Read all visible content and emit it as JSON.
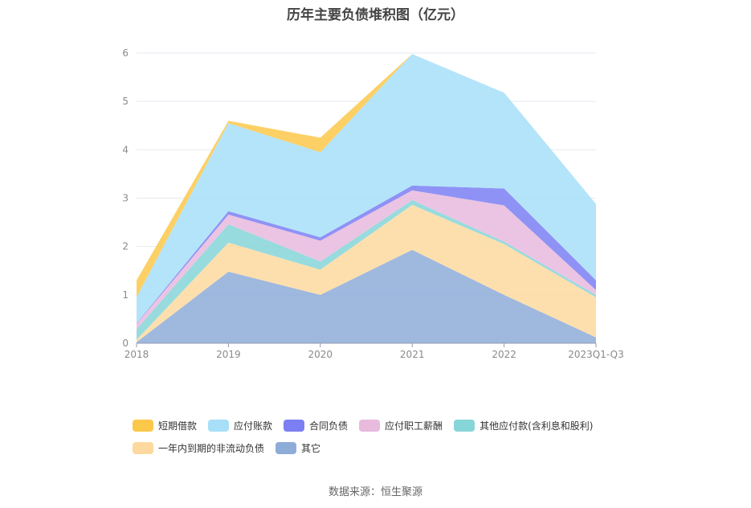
{
  "chart_data": {
    "type": "area",
    "title": "历年主要负债堆积图（亿元）",
    "categories": [
      "2018",
      "2019",
      "2020",
      "2021",
      "2022",
      "2023Q1-Q3"
    ],
    "ylim": [
      0,
      6
    ],
    "yticks": [
      0,
      1,
      2,
      3,
      4,
      5,
      6
    ],
    "stacked": true,
    "grid": true,
    "legend_position": "bottom",
    "series": [
      {
        "name": "其它",
        "color": "#8eacd8",
        "values": [
          0.02,
          1.48,
          1.0,
          1.93,
          1.0,
          0.12
        ]
      },
      {
        "name": "一年内到期的非流动负债",
        "color": "#fdd9a0",
        "values": [
          0.05,
          0.6,
          0.52,
          0.93,
          1.05,
          0.83
        ]
      },
      {
        "name": "其他应付款(含利息和股利)",
        "color": "#86d5d8",
        "values": [
          0.22,
          0.38,
          0.17,
          0.1,
          0.05,
          0.05
        ]
      },
      {
        "name": "应付职工薪酬",
        "color": "#e7bade",
        "values": [
          0.11,
          0.2,
          0.43,
          0.2,
          0.75,
          0.1
        ]
      },
      {
        "name": "合同负债",
        "color": "#7b7ff3",
        "values": [
          0.01,
          0.07,
          0.07,
          0.1,
          0.35,
          0.2
        ]
      },
      {
        "name": "应付账款",
        "color": "#a7dff8",
        "values": [
          0.54,
          1.82,
          1.76,
          2.72,
          1.98,
          1.58
        ]
      },
      {
        "name": "短期借款",
        "color": "#fbc84a",
        "values": [
          0.35,
          0.05,
          0.3,
          0.0,
          0.0,
          0.0
        ]
      }
    ]
  },
  "legend_order": [
    6,
    5,
    4,
    3,
    2,
    1,
    0
  ],
  "source_text": "数据来源：恒生聚源"
}
